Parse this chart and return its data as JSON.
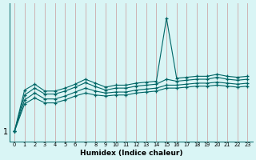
{
  "xlabel": "Humidex (Indice chaleur)",
  "bg_color": "#d9f5f5",
  "grid_color": "#ccaaaa",
  "line_color": "#006666",
  "x_values": [
    0,
    1,
    2,
    3,
    4,
    5,
    6,
    7,
    8,
    9,
    10,
    11,
    12,
    13,
    14,
    15,
    16,
    17,
    18,
    19,
    20,
    21,
    22,
    23
  ],
  "series1": [
    1,
    5.2,
    5.8,
    5.1,
    5.1,
    5.4,
    5.8,
    6.3,
    5.9,
    5.5,
    5.7,
    5.7,
    5.9,
    6.0,
    6.1,
    12.5,
    6.4,
    6.5,
    6.6,
    6.6,
    6.8,
    6.6,
    6.5,
    6.6
  ],
  "series2": [
    1,
    4.7,
    5.4,
    4.8,
    4.8,
    5.1,
    5.5,
    5.95,
    5.55,
    5.2,
    5.4,
    5.4,
    5.6,
    5.7,
    5.8,
    6.3,
    6.1,
    6.2,
    6.3,
    6.3,
    6.5,
    6.3,
    6.2,
    6.3
  ],
  "series3": [
    1,
    4.2,
    4.9,
    4.3,
    4.3,
    4.6,
    5.0,
    5.4,
    5.1,
    4.9,
    5.0,
    5.0,
    5.2,
    5.3,
    5.4,
    5.7,
    5.7,
    5.8,
    5.9,
    5.9,
    6.0,
    5.9,
    5.8,
    5.9
  ],
  "series4": [
    1,
    3.8,
    4.4,
    3.9,
    3.9,
    4.2,
    4.6,
    4.9,
    4.7,
    4.6,
    4.7,
    4.7,
    4.9,
    5.0,
    5.1,
    5.4,
    5.4,
    5.5,
    5.6,
    5.6,
    5.7,
    5.6,
    5.5,
    5.6
  ],
  "ytick_label": "1",
  "ytick_val": 1.0,
  "ylim_min": 0.0,
  "ylim_max": 14.0,
  "xlim_min": -0.5,
  "xlim_max": 23.5
}
